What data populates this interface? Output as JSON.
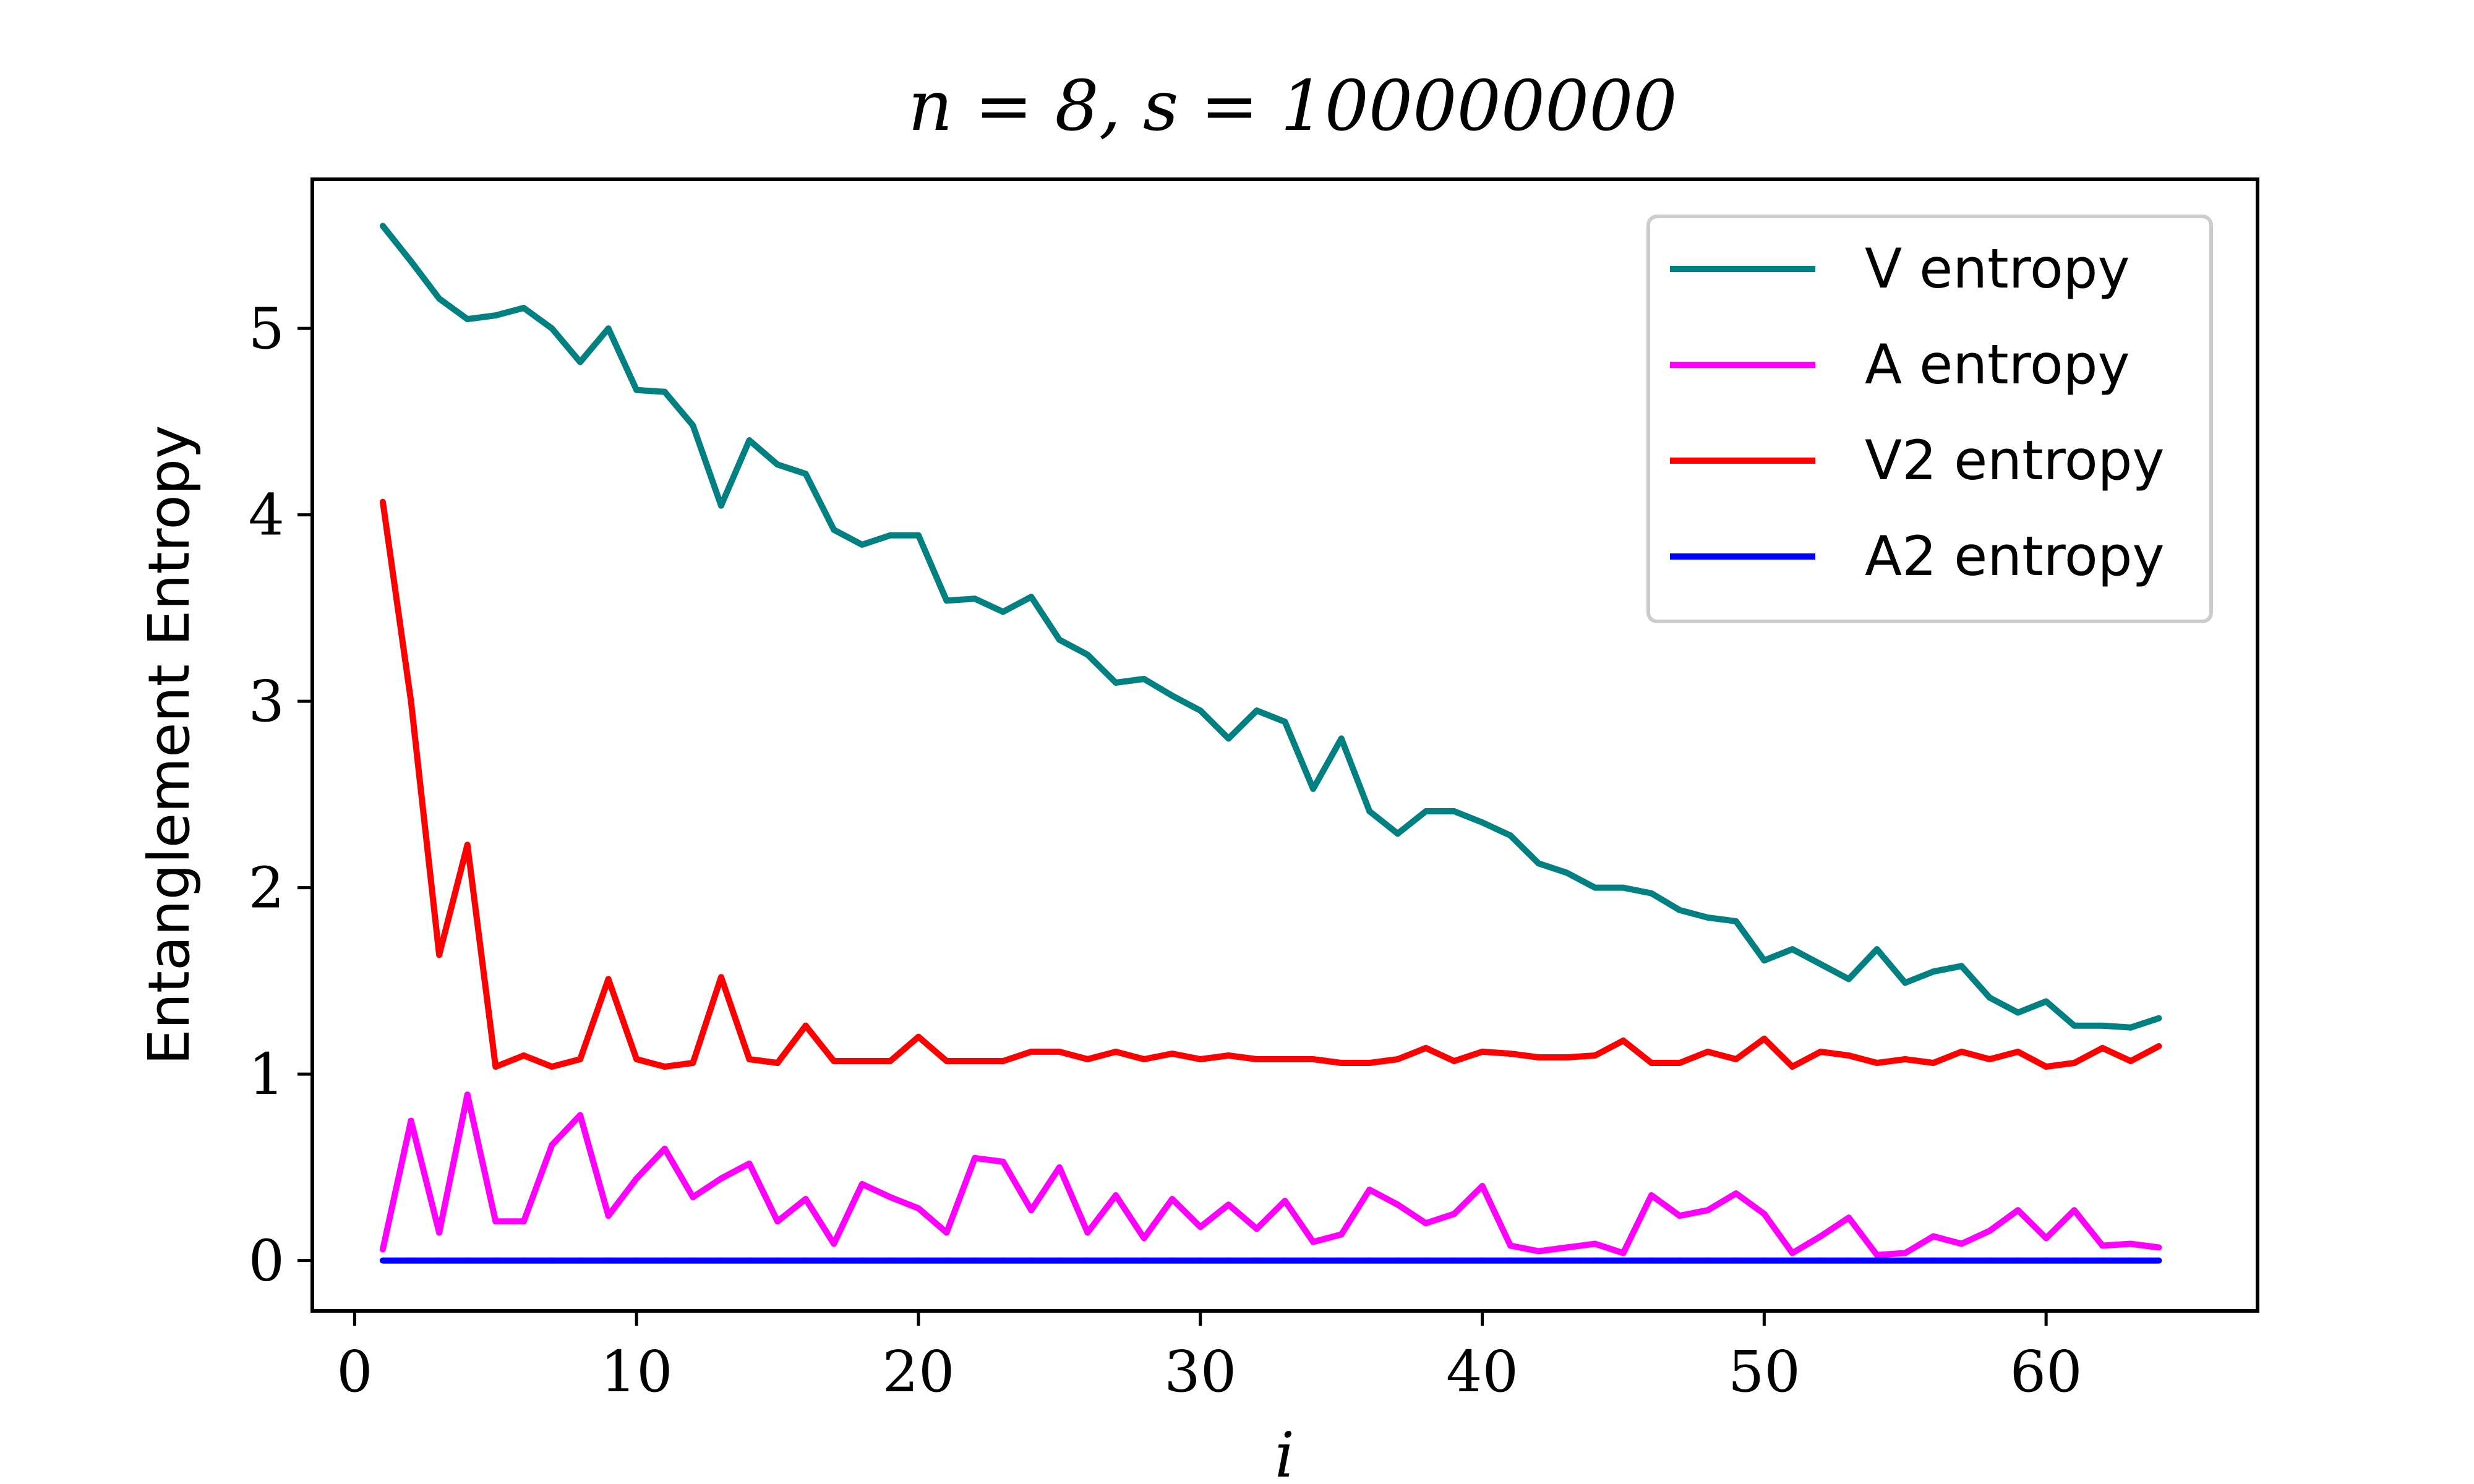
{
  "chart_data": {
    "type": "line",
    "title": "n = 8, s = 100000000",
    "xlabel": "i",
    "ylabel": "Entanglement Entropy",
    "xlim": [
      -1.5,
      67.5
    ],
    "ylim": [
      -0.27,
      5.8
    ],
    "xticks": [
      0,
      10,
      20,
      30,
      40,
      50,
      60
    ],
    "yticks": [
      0,
      1,
      2,
      3,
      4,
      5
    ],
    "grid": false,
    "legend_position": "top-right",
    "x": [
      1,
      2,
      3,
      4,
      5,
      6,
      7,
      8,
      9,
      10,
      11,
      12,
      13,
      14,
      15,
      16,
      17,
      18,
      19,
      20,
      21,
      22,
      23,
      24,
      25,
      26,
      27,
      28,
      29,
      30,
      31,
      32,
      33,
      34,
      35,
      36,
      37,
      38,
      39,
      40,
      41,
      42,
      43,
      44,
      45,
      46,
      47,
      48,
      49,
      50,
      51,
      52,
      53,
      54,
      55,
      56,
      57,
      58,
      59,
      60,
      61,
      62,
      63,
      64
    ],
    "series": [
      {
        "name": "V entropy",
        "color": "#008080",
        "values": [
          5.55,
          5.36,
          5.16,
          5.05,
          5.07,
          5.11,
          5.0,
          4.82,
          5.0,
          4.67,
          4.66,
          4.48,
          4.05,
          4.4,
          4.27,
          4.22,
          3.92,
          3.84,
          3.89,
          3.89,
          3.54,
          3.55,
          3.48,
          3.56,
          3.33,
          3.25,
          3.1,
          3.12,
          3.03,
          2.95,
          2.8,
          2.95,
          2.89,
          2.53,
          2.8,
          2.41,
          2.29,
          2.41,
          2.41,
          2.35,
          2.28,
          2.13,
          2.08,
          2.0,
          2.0,
          1.97,
          1.88,
          1.84,
          1.82,
          1.61,
          1.67,
          1.59,
          1.51,
          1.67,
          1.49,
          1.55,
          1.58,
          1.41,
          1.33,
          1.39,
          1.26,
          1.26,
          1.25,
          1.3
        ]
      },
      {
        "name": "A entropy",
        "color": "#ff00ff",
        "values": [
          0.06,
          0.75,
          0.15,
          0.89,
          0.21,
          0.21,
          0.62,
          0.78,
          0.24,
          0.44,
          0.6,
          0.34,
          0.44,
          0.52,
          0.21,
          0.33,
          0.09,
          0.41,
          0.34,
          0.28,
          0.15,
          0.55,
          0.53,
          0.27,
          0.5,
          0.15,
          0.35,
          0.12,
          0.33,
          0.18,
          0.3,
          0.17,
          0.32,
          0.1,
          0.14,
          0.38,
          0.3,
          0.2,
          0.25,
          0.4,
          0.08,
          0.05,
          0.07,
          0.09,
          0.04,
          0.35,
          0.24,
          0.27,
          0.36,
          0.25,
          0.04,
          0.13,
          0.23,
          0.03,
          0.04,
          0.13,
          0.09,
          0.16,
          0.27,
          0.12,
          0.27,
          0.08,
          0.09,
          0.07
        ]
      },
      {
        "name": "V2 entropy",
        "color": "#ff0000",
        "values": [
          4.07,
          3.0,
          1.64,
          2.23,
          1.04,
          1.1,
          1.04,
          1.08,
          1.51,
          1.08,
          1.04,
          1.06,
          1.52,
          1.08,
          1.06,
          1.26,
          1.07,
          1.07,
          1.07,
          1.2,
          1.07,
          1.07,
          1.07,
          1.12,
          1.12,
          1.08,
          1.12,
          1.08,
          1.11,
          1.08,
          1.1,
          1.08,
          1.08,
          1.08,
          1.06,
          1.06,
          1.08,
          1.14,
          1.07,
          1.12,
          1.11,
          1.09,
          1.09,
          1.1,
          1.18,
          1.06,
          1.06,
          1.12,
          1.08,
          1.19,
          1.04,
          1.12,
          1.1,
          1.06,
          1.08,
          1.06,
          1.12,
          1.08,
          1.12,
          1.04,
          1.06,
          1.14,
          1.07,
          1.15
        ]
      },
      {
        "name": "A2 entropy",
        "color": "#0000ff",
        "values": [
          0,
          0,
          0,
          0,
          0,
          0,
          0,
          0,
          0,
          0,
          0,
          0,
          0,
          0,
          0,
          0,
          0,
          0,
          0,
          0,
          0,
          0,
          0,
          0,
          0,
          0,
          0,
          0,
          0,
          0,
          0,
          0,
          0,
          0,
          0,
          0,
          0,
          0,
          0,
          0,
          0,
          0,
          0,
          0,
          0,
          0,
          0,
          0,
          0,
          0,
          0,
          0,
          0,
          0,
          0,
          0,
          0,
          0,
          0,
          0,
          0,
          0,
          0,
          0
        ]
      }
    ]
  }
}
